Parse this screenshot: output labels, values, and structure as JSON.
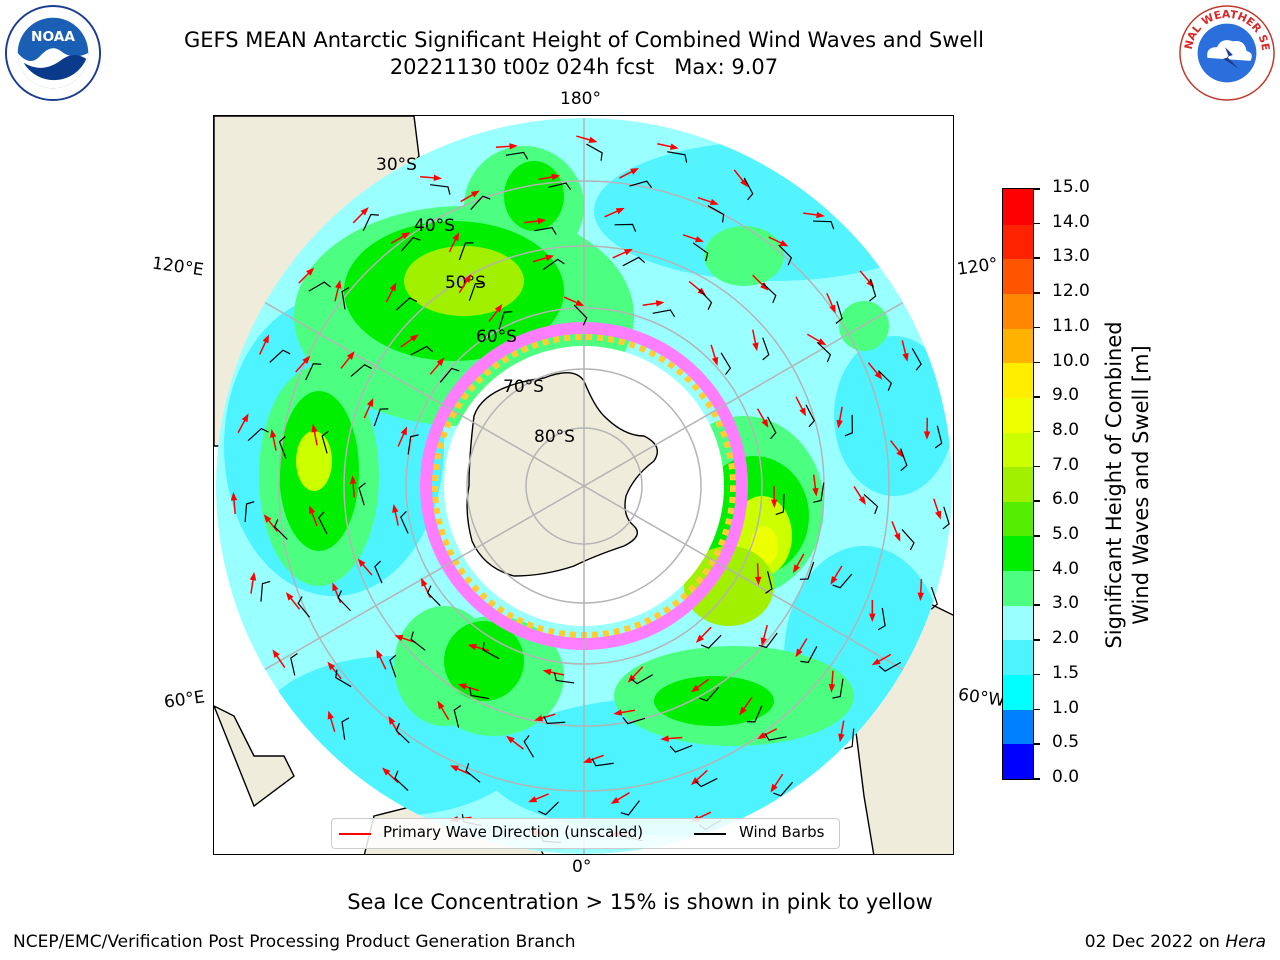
{
  "title": {
    "line1": "GEFS MEAN Antarctic Significant Height of Combined Wind Waves and Swell",
    "line2": "20221130 t00z 024h fcst   Max: 9.07"
  },
  "logos": {
    "left": "noaa-logo",
    "left_text": "NOAA",
    "right": "national-weather-service-logo",
    "right_text": "NATIONAL WEATHER SERVICE"
  },
  "map": {
    "projection": "south-polar-stereographic",
    "longitude_labels": {
      "top": "180°",
      "upper_left": "120°E",
      "upper_right": "120°",
      "lower_left": "60°E",
      "lower_right": "60°W",
      "bottom": "0°"
    },
    "latitude_labels": [
      "30°S",
      "40°S",
      "50°S",
      "60°S",
      "70°S",
      "80°S"
    ],
    "colors": {
      "land": "#efecdc",
      "ice_pink": "#ff7dff",
      "ice_yellow": "#ffcc33",
      "ocean_low": "#99ffff",
      "grid": "#b4b4b4"
    }
  },
  "colorbar": {
    "label_line1": "Significant Height of Combined",
    "label_line2": "Wind Waves and Swell [m]",
    "ticks": [
      "0.0",
      "0.5",
      "1.0",
      "1.5",
      "2.0",
      "3.0",
      "4.0",
      "5.0",
      "6.0",
      "7.0",
      "8.0",
      "9.0",
      "10.0",
      "11.0",
      "12.0",
      "13.0",
      "14.0",
      "15.0"
    ],
    "colors": [
      "#0000ff",
      "#0080ff",
      "#00ffff",
      "#4df3ff",
      "#99ffff",
      "#4dff80",
      "#00ee00",
      "#55ee00",
      "#a0f000",
      "#ccff00",
      "#eeff00",
      "#ffee00",
      "#ffb300",
      "#ff8800",
      "#ff5500",
      "#ff2200",
      "#ff0000"
    ]
  },
  "legend": {
    "wave_label": "Primary Wave Direction (unscaled)",
    "wave_color": "#ff0000",
    "wind_label": "Wind Barbs",
    "wind_color": "#000000"
  },
  "footer": {
    "ice_note": "Sea Ice Concentration > 15% is shown in pink to yellow",
    "credit": "NCEP/EMC/Verification Post Processing Product Generation Branch",
    "date": "02 Dec 2022 on",
    "machine": "Hera"
  }
}
